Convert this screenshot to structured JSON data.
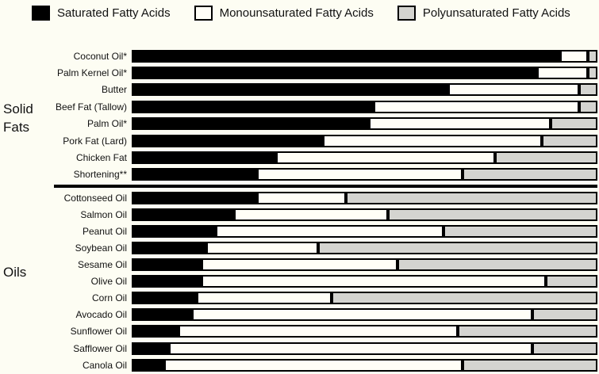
{
  "figure": {
    "background": "#fdfdf3",
    "outline_color": "#000000"
  },
  "chart_data": {
    "type": "bar",
    "orientation": "horizontal",
    "stacked": true,
    "value_unit": "percent of total fatty acids",
    "xlim": [
      0,
      100
    ],
    "legend_position": "top",
    "grid": false,
    "series": [
      {
        "key": "saturated",
        "name": "Saturated Fatty Acids",
        "color": "#000000"
      },
      {
        "key": "monounsaturated",
        "name": "Monounsaturated Fatty Acids",
        "color": "#fffef7"
      },
      {
        "key": "polyunsaturated",
        "name": "Polyunsaturated Fatty Acids",
        "color": "#d4d4d0"
      }
    ],
    "groups": [
      {
        "label": "Solid Fats",
        "rows": [
          {
            "category": "Coconut Oil*",
            "values": [
              92,
              6,
              2
            ]
          },
          {
            "category": "Palm Kernel Oil*",
            "values": [
              87,
              11,
              2
            ]
          },
          {
            "category": "Butter",
            "values": [
              68,
              28,
              4
            ]
          },
          {
            "category": "Beef Fat (Tallow)",
            "values": [
              52,
              44,
              4
            ]
          },
          {
            "category": "Palm Oil*",
            "values": [
              51,
              39,
              10
            ]
          },
          {
            "category": "Pork Fat (Lard)",
            "values": [
              41,
              47,
              12
            ]
          },
          {
            "category": "Chicken Fat",
            "values": [
              31,
              47,
              22
            ]
          },
          {
            "category": "Shortening**",
            "values": [
              27,
              44,
              29
            ]
          }
        ]
      },
      {
        "label": "Oils",
        "rows": [
          {
            "category": "Cottonseed Oil",
            "values": [
              27,
              19,
              54
            ]
          },
          {
            "category": "Salmon Oil",
            "values": [
              22,
              33,
              45
            ]
          },
          {
            "category": "Peanut Oil",
            "values": [
              18,
              49,
              33
            ]
          },
          {
            "category": "Soybean Oil",
            "values": [
              16,
              24,
              60
            ]
          },
          {
            "category": "Sesame Oil",
            "values": [
              15,
              42,
              43
            ]
          },
          {
            "category": "Olive Oil",
            "values": [
              15,
              74,
              11
            ]
          },
          {
            "category": "Corn Oil",
            "values": [
              14,
              29,
              57
            ]
          },
          {
            "category": "Avocado Oil",
            "values": [
              13,
              73,
              14
            ]
          },
          {
            "category": "Sunflower Oil",
            "values": [
              10,
              60,
              30
            ]
          },
          {
            "category": "Safflower Oil",
            "values": [
              8,
              78,
              14
            ]
          },
          {
            "category": "Canola Oil",
            "values": [
              7,
              64,
              29
            ]
          }
        ]
      }
    ]
  }
}
